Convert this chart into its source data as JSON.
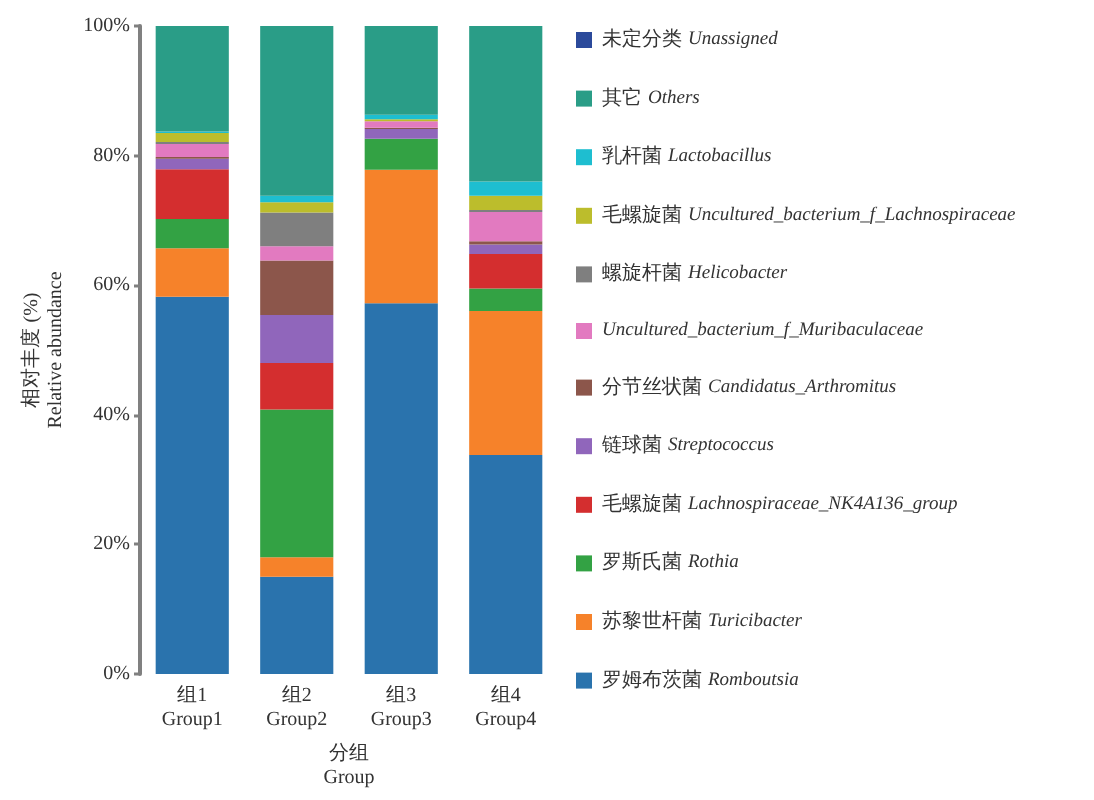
{
  "chart_data": {
    "type": "bar",
    "stacked": true,
    "legend": "right",
    "categories": [
      "组1\nGroup1",
      "组2\nGroup2",
      "组3\nGroup3",
      "组4\nGroup4"
    ],
    "xlabel": "分组\nGroup",
    "ylabel": "相对丰度 (%)\nRelative abundance",
    "ylim": [
      0,
      100
    ],
    "yticks": [
      {
        "value": 0,
        "label": "0%"
      },
      {
        "value": 20,
        "label": "20%"
      },
      {
        "value": 40,
        "label": "40%"
      },
      {
        "value": 60,
        "label": "60%"
      },
      {
        "value": 80,
        "label": "80%"
      },
      {
        "value": 100,
        "label": "100%"
      }
    ],
    "series": [
      {
        "name": "罗姆布茨菌 Romboutsia",
        "color": "#2a73ad",
        "values": [
          58.2,
          15,
          57.2,
          33.8
        ]
      },
      {
        "name": "苏黎世杆菌 Turicibacter",
        "color": "#f6822a",
        "values": [
          7.5,
          3,
          20.6,
          22.2
        ]
      },
      {
        "name": "罗斯氏菌 Rothia",
        "color": "#33a244",
        "values": [
          4.5,
          22.8,
          4.8,
          3.5
        ]
      },
      {
        "name": "毛螺旋菌 Lachnospiraceae_NK4A136_group",
        "color": "#d42e2f",
        "values": [
          7.7,
          7.2,
          null,
          5.3
        ]
      },
      {
        "name": "链球菌 Streptococcus",
        "color": "#9066bb",
        "values": [
          1.6,
          7.4,
          1.5,
          1.5
        ]
      },
      {
        "name": "分节丝状菌 Candidatus_Arthromitus",
        "color": "#8c564b",
        "values": [
          0.3,
          8.4,
          0.2,
          0.5
        ]
      },
      {
        "name": "Uncultured_bacterium_f_Muribaculaceae",
        "color": "#e27ac0",
        "values": [
          2,
          2.2,
          1,
          4.5
        ]
      },
      {
        "name": "螺旋杆菌 Helicobacter",
        "color": "#7f7f7f",
        "values": [
          0.3,
          5.2,
          null,
          0.3
        ]
      },
      {
        "name": "毛螺旋菌 Uncultured_bacterium_f_Lachnospiraceae",
        "color": "#bcbd2c",
        "values": [
          1.4,
          1.6,
          0.3,
          2.2
        ]
      },
      {
        "name": "乳杆菌 Lactobacillus",
        "color": "#1ebed0",
        "values": [
          0.2,
          1,
          0.7,
          2.2
        ]
      },
      {
        "name": "其它 Others",
        "color": "#2a9d87",
        "values": [
          16.3,
          26.2,
          13.7,
          24
        ]
      },
      {
        "name": "未定分类 Unassigned",
        "color": "#2b4a9b",
        "values": [
          null,
          null,
          null,
          null
        ]
      }
    ]
  }
}
